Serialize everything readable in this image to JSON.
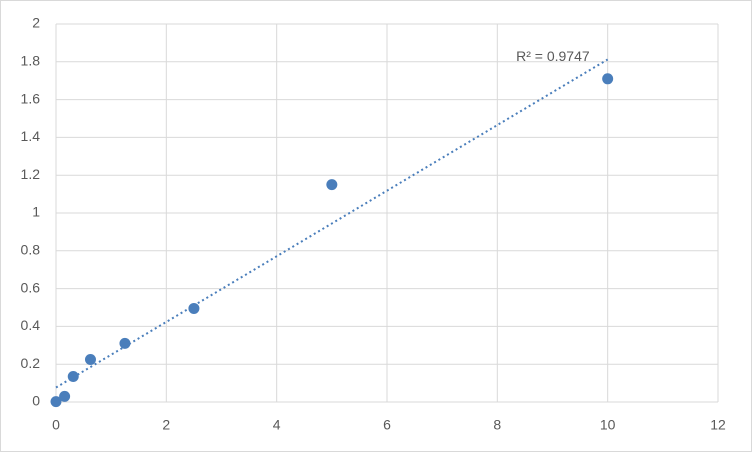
{
  "chart_data": {
    "type": "scatter",
    "x": [
      0,
      0.156,
      0.3125,
      0.625,
      1.25,
      2.5,
      5,
      10
    ],
    "values": [
      0.002,
      0.03,
      0.135,
      0.225,
      0.31,
      0.495,
      1.15,
      1.71
    ],
    "color": "#4a7ebb",
    "trendline": "linear",
    "annotation": "R² = 0.9747",
    "xlim": [
      0,
      12
    ],
    "xticks": [
      0,
      2,
      4,
      6,
      8,
      10,
      12
    ],
    "ylim": [
      0,
      2
    ],
    "yticks": [
      0,
      0.2,
      0.4,
      0.6,
      0.8,
      1,
      1.2,
      1.4,
      1.6,
      1.8,
      2
    ],
    "grid": true
  }
}
